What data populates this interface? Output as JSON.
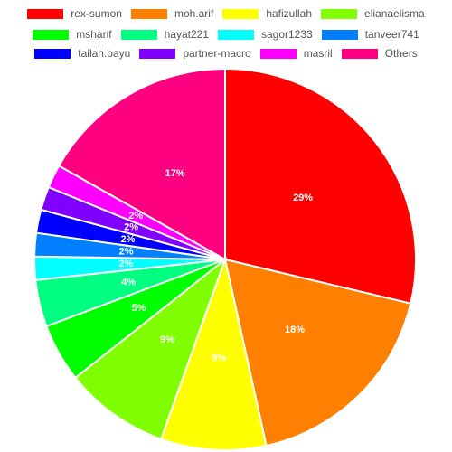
{
  "chart_data": {
    "type": "pie",
    "title": "",
    "legend_position": "top",
    "labels": [
      "rex-sumon",
      "moh.arif",
      "hafizullah",
      "elianaelisma",
      "msharif",
      "hayat221",
      "sagor1233",
      "tanveer741",
      "tailah.bayu",
      "partner-macro",
      "masril",
      "Others"
    ],
    "values": [
      29,
      18,
      9,
      9,
      5,
      4,
      2,
      2,
      2,
      2,
      2,
      17
    ],
    "value_labels": [
      "29%",
      "18%",
      "9%",
      "9%",
      "5%",
      "4%",
      "2%",
      "2%",
      "2%",
      "2%",
      "2%",
      "17%"
    ],
    "colors": [
      "#ff0000",
      "#ff8000",
      "#ffff00",
      "#80ff00",
      "#00ff00",
      "#00ff80",
      "#00ffff",
      "#0080ff",
      "#0000ff",
      "#8000ff",
      "#ff00ff",
      "#ff0080"
    ]
  }
}
